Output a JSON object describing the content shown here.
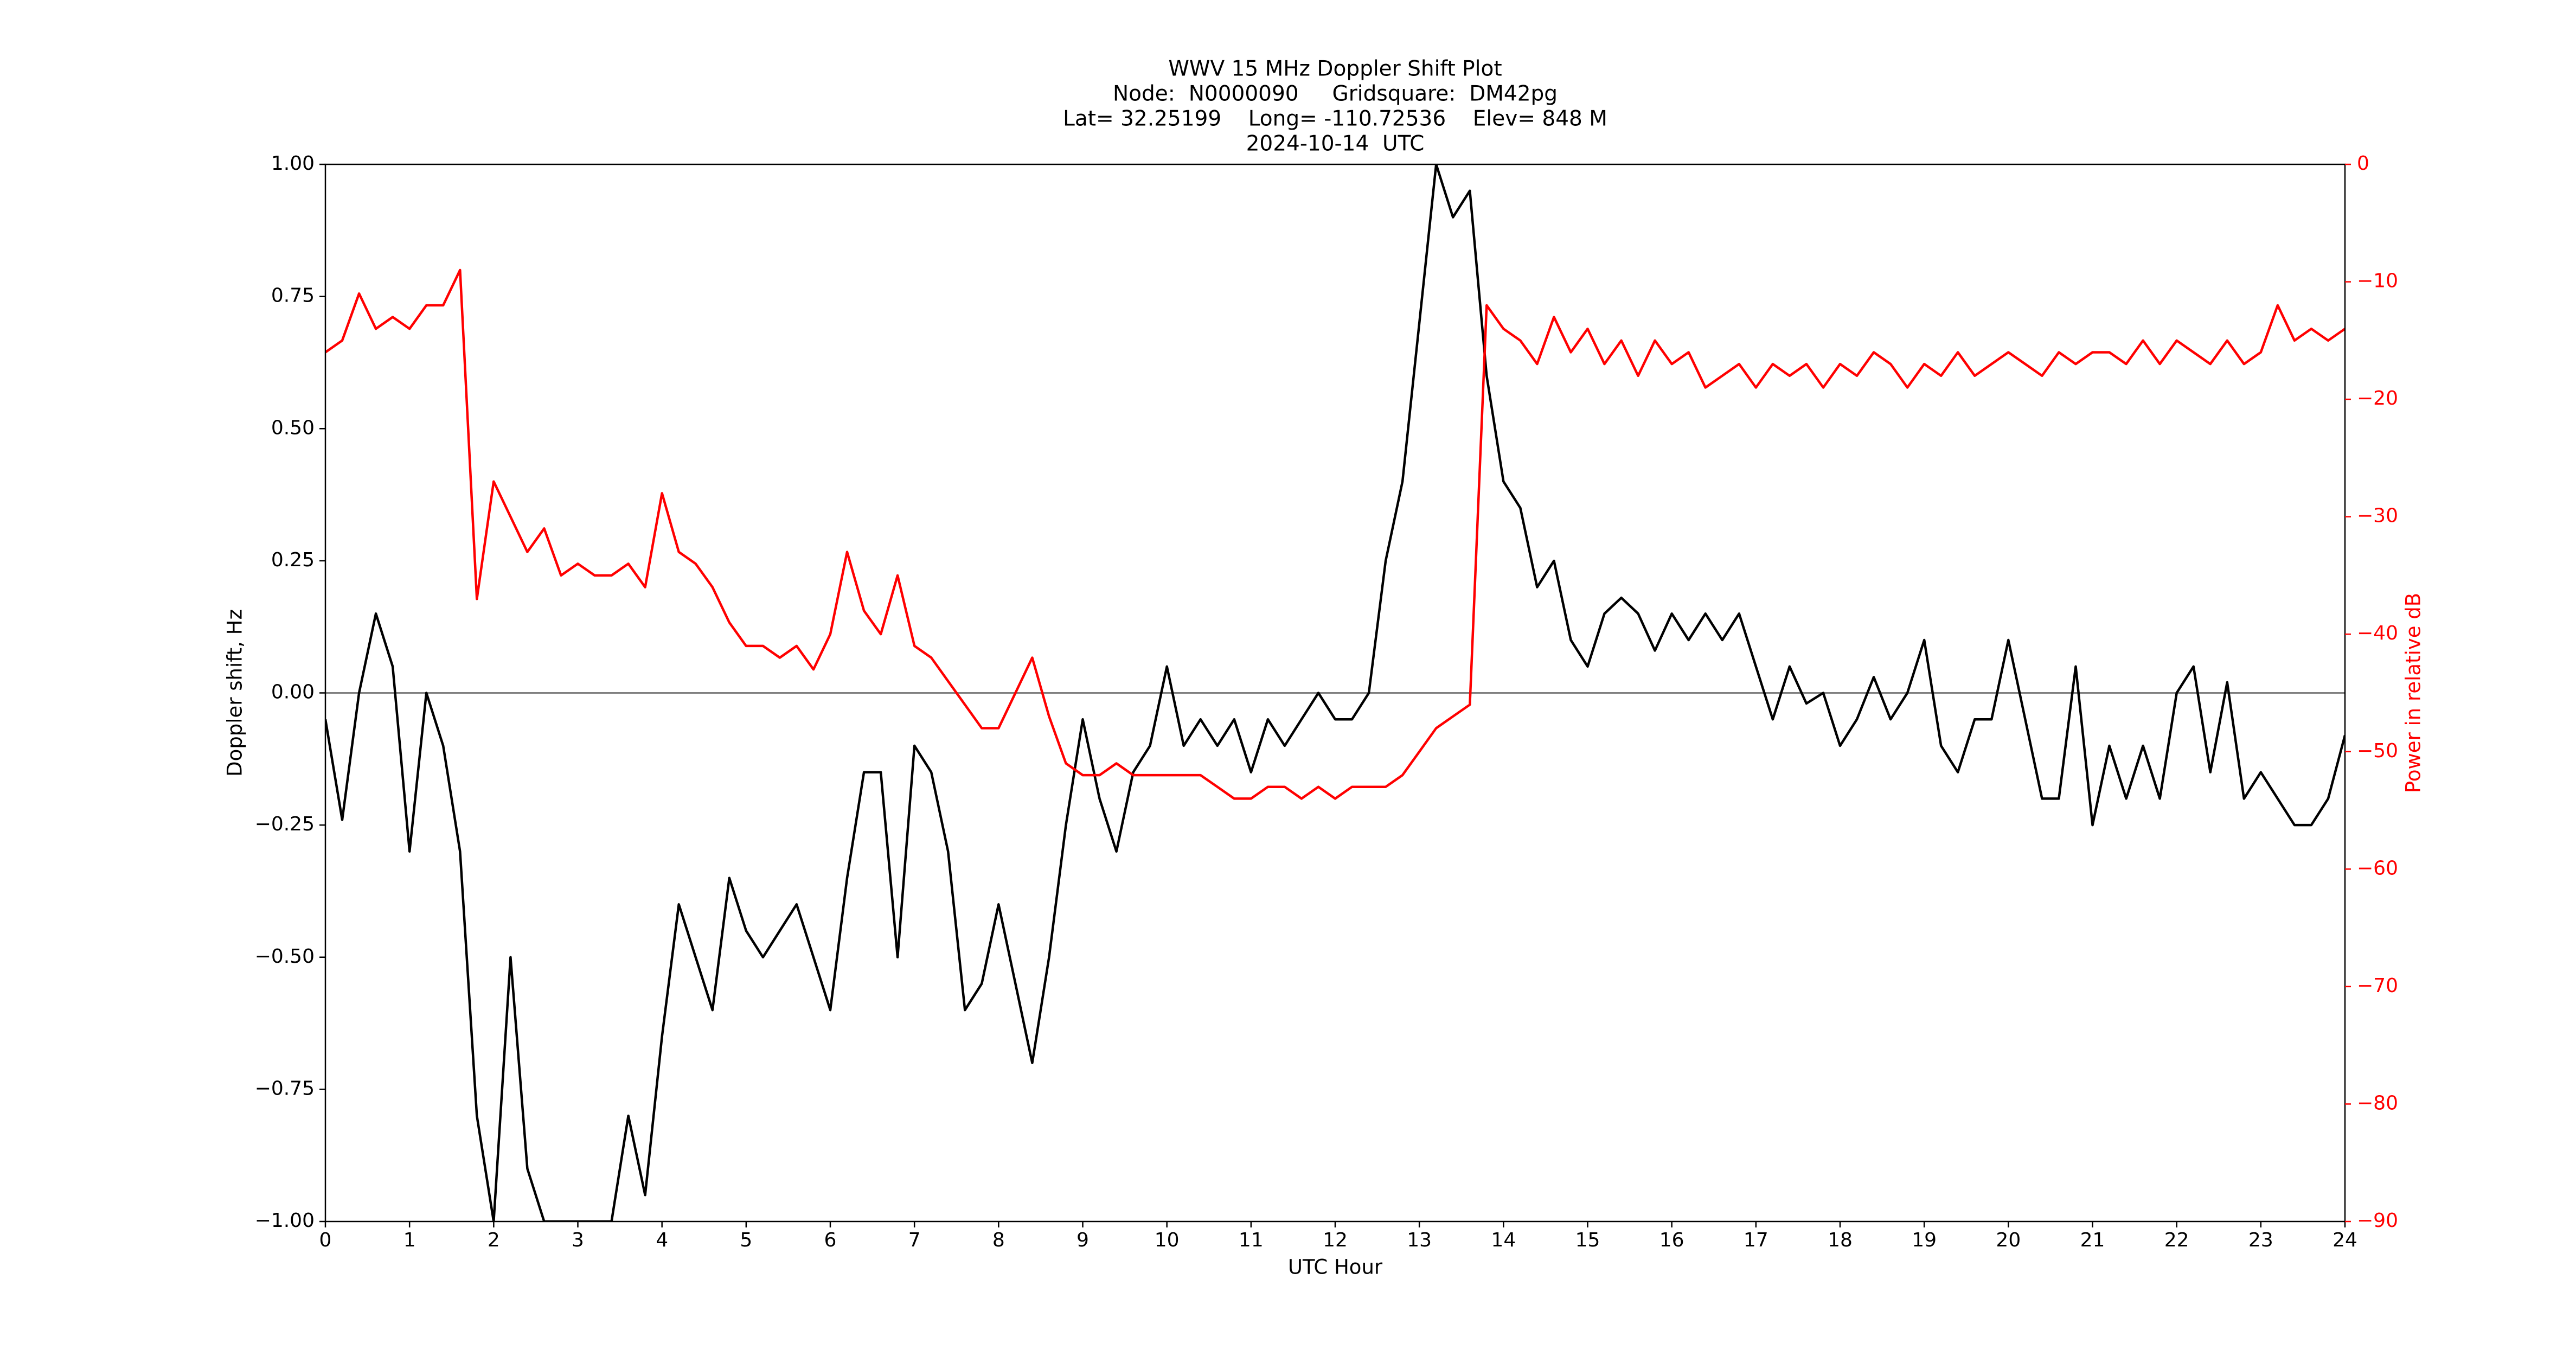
{
  "chart_data": {
    "type": "line",
    "title": [
      "WWV 15 MHz Doppler Shift Plot",
      "Node:  N0000090     Gridsquare:  DM42pg",
      "Lat= 32.25199    Long= -110.72536    Elev= 848 M",
      "2024-10-14  UTC"
    ],
    "xlabel": "UTC Hour",
    "ylabel": "Doppler shift, Hz",
    "y2label": "Power in relative dB",
    "y2color": "#ff0000",
    "x": [
      0,
      0.2,
      0.4,
      0.6,
      0.8,
      1,
      1.2,
      1.4,
      1.6,
      1.8,
      2,
      2.2,
      2.4,
      2.6,
      2.8,
      3,
      3.2,
      3.4,
      3.6,
      3.8,
      4,
      4.2,
      4.4,
      4.6,
      4.8,
      5,
      5.2,
      5.4,
      5.6,
      5.8,
      6,
      6.2,
      6.4,
      6.6,
      6.8,
      7,
      7.2,
      7.4,
      7.6,
      7.8,
      8,
      8.2,
      8.4,
      8.6,
      8.8,
      9,
      9.2,
      9.4,
      9.6,
      9.8,
      10,
      10.2,
      10.4,
      10.6,
      10.8,
      11,
      11.2,
      11.4,
      11.6,
      11.8,
      12,
      12.2,
      12.4,
      12.6,
      12.8,
      13,
      13.2,
      13.4,
      13.6,
      13.8,
      14,
      14.2,
      14.4,
      14.6,
      14.8,
      15,
      15.2,
      15.4,
      15.6,
      15.8,
      16,
      16.2,
      16.4,
      16.6,
      16.8,
      17,
      17.2,
      17.4,
      17.6,
      17.8,
      18,
      18.2,
      18.4,
      18.6,
      18.8,
      19,
      19.2,
      19.4,
      19.6,
      19.8,
      20,
      20.2,
      20.4,
      20.6,
      20.8,
      21,
      21.2,
      21.4,
      21.6,
      21.8,
      22,
      22.2,
      22.4,
      22.6,
      22.8,
      23,
      23.2,
      23.4,
      23.6,
      23.8,
      24
    ],
    "series": [
      {
        "name": "Doppler shift",
        "color": "#000000",
        "values": [
          -0.05,
          -0.24,
          0.0,
          0.15,
          0.05,
          -0.3,
          0.0,
          -0.1,
          -0.3,
          -0.8,
          -1.0,
          -0.5,
          -0.9,
          -1.0,
          -1.0,
          -1.0,
          -1.0,
          -1.0,
          -0.8,
          -0.95,
          -0.65,
          -0.4,
          -0.5,
          -0.6,
          -0.35,
          -0.45,
          -0.5,
          -0.45,
          -0.4,
          -0.5,
          -0.6,
          -0.35,
          -0.15,
          -0.15,
          -0.5,
          -0.1,
          -0.15,
          -0.3,
          -0.6,
          -0.55,
          -0.4,
          -0.55,
          -0.7,
          -0.5,
          -0.25,
          -0.05,
          -0.2,
          -0.3,
          -0.15,
          -0.1,
          0.05,
          -0.1,
          -0.05,
          -0.1,
          -0.05,
          -0.15,
          -0.05,
          -0.1,
          -0.05,
          0.0,
          -0.05,
          -0.05,
          0.0,
          0.25,
          0.4,
          0.7,
          1.0,
          0.9,
          0.95,
          0.6,
          0.4,
          0.35,
          0.2,
          0.25,
          0.1,
          0.05,
          0.15,
          0.18,
          0.15,
          0.08,
          0.15,
          0.1,
          0.15,
          0.1,
          0.15,
          0.05,
          -0.05,
          0.05,
          -0.02,
          0.0,
          -0.1,
          -0.05,
          0.03,
          -0.05,
          0.0,
          0.1,
          -0.1,
          -0.15,
          -0.05,
          -0.05,
          0.1,
          -0.05,
          -0.2,
          -0.2,
          0.05,
          -0.25,
          -0.1,
          -0.2,
          -0.1,
          -0.2,
          0.0,
          0.05,
          -0.15,
          0.02,
          -0.2,
          -0.15,
          -0.2,
          -0.25,
          -0.25,
          -0.2,
          -0.08
        ]
      },
      {
        "name": "Power",
        "color": "#ff0000",
        "axis": "y2",
        "values": [
          -16,
          -15,
          -11,
          -14,
          -13,
          -14,
          -12,
          -12,
          -9,
          -37,
          -27,
          -30,
          -33,
          -31,
          -35,
          -34,
          -35,
          -35,
          -34,
          -36,
          -28,
          -33,
          -34,
          -36,
          -39,
          -41,
          -41,
          -42,
          -41,
          -43,
          -40,
          -33,
          -38,
          -40,
          -35,
          -41,
          -42,
          -44,
          -46,
          -48,
          -48,
          -45,
          -42,
          -47,
          -51,
          -52,
          -52,
          -51,
          -52,
          -52,
          -52,
          -52,
          -52,
          -53,
          -54,
          -54,
          -53,
          -53,
          -54,
          -53,
          -54,
          -53,
          -53,
          -53,
          -52,
          -50,
          -48,
          -47,
          -46,
          -12,
          -14,
          -15,
          -17,
          -13,
          -16,
          -14,
          -17,
          -15,
          -18,
          -15,
          -17,
          -16,
          -19,
          -18,
          -17,
          -19,
          -17,
          -18,
          -17,
          -19,
          -17,
          -18,
          -16,
          -17,
          -19,
          -17,
          -18,
          -16,
          -18,
          -17,
          -16,
          -17,
          -18,
          -16,
          -17,
          -16,
          -16,
          -17,
          -15,
          -17,
          -15,
          -16,
          -17,
          -15,
          -17,
          -16,
          -12,
          -15,
          -14,
          -15,
          -14
        ]
      }
    ],
    "axhline": 0,
    "axhline_color": "#808080",
    "xlim": [
      0,
      24
    ],
    "xticks": [
      0,
      1,
      2,
      3,
      4,
      5,
      6,
      7,
      8,
      9,
      10,
      11,
      12,
      13,
      14,
      15,
      16,
      17,
      18,
      19,
      20,
      21,
      22,
      23,
      24
    ],
    "ylim": [
      -1,
      1
    ],
    "yticks": [
      {
        "value": -1,
        "label": "−1.00"
      },
      {
        "value": -0.75,
        "label": "−0.75"
      },
      {
        "value": -0.5,
        "label": "−0.50"
      },
      {
        "value": -0.25,
        "label": "−0.25"
      },
      {
        "value": 0,
        "label": "0.00"
      },
      {
        "value": 0.25,
        "label": "0.25"
      },
      {
        "value": 0.5,
        "label": "0.50"
      },
      {
        "value": 0.75,
        "label": "0.75"
      },
      {
        "value": 1,
        "label": "1.00"
      }
    ],
    "y2lim": [
      -90,
      0
    ],
    "y2ticks": [
      {
        "value": -90,
        "label": "−90"
      },
      {
        "value": -80,
        "label": "−80"
      },
      {
        "value": -70,
        "label": "−70"
      },
      {
        "value": -60,
        "label": "−60"
      },
      {
        "value": -50,
        "label": "−50"
      },
      {
        "value": -40,
        "label": "−40"
      },
      {
        "value": -30,
        "label": "−30"
      },
      {
        "value": -20,
        "label": "−20"
      },
      {
        "value": -10,
        "label": "−10"
      },
      0
    ],
    "grid": false
  }
}
